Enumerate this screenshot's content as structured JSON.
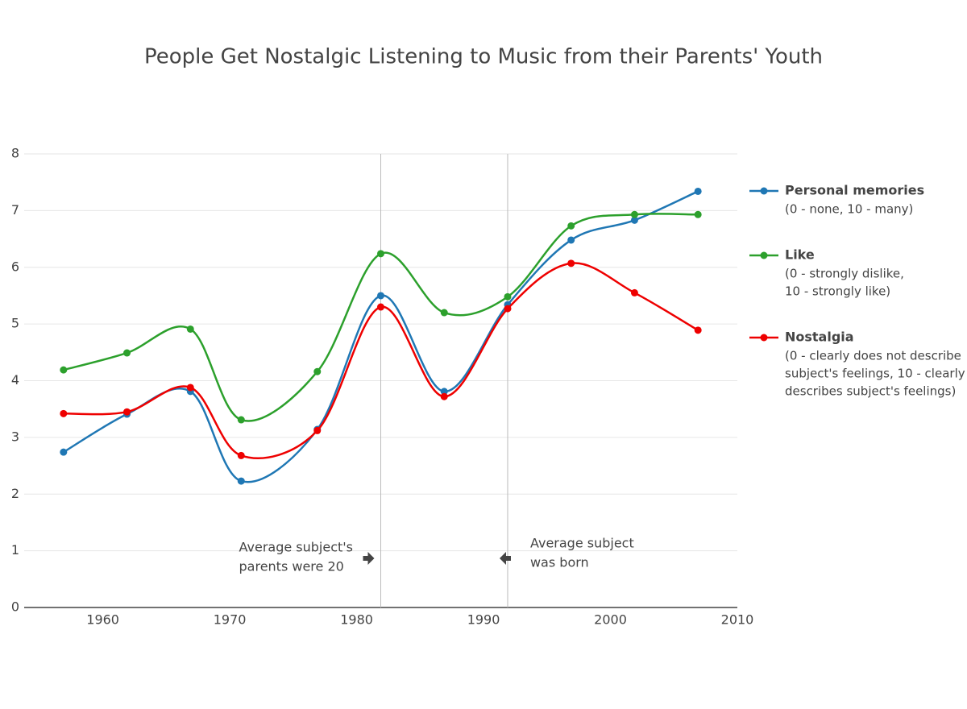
{
  "chart_data": {
    "type": "line",
    "title": "People Get Nostalgic Listening to Music from their Parents' Youth",
    "x": [
      1956.9,
      1961.9,
      1966.9,
      1970.9,
      1976.9,
      1981.9,
      1986.9,
      1991.9,
      1996.9,
      2001.9,
      2006.9
    ],
    "series": [
      {
        "name": "Personal memories",
        "note_lines": [
          "(0 - none, 10 - many)"
        ],
        "color": "#1f77b4",
        "values": [
          2.74,
          3.41,
          3.81,
          2.23,
          3.14,
          5.5,
          3.81,
          5.34,
          6.48,
          6.83,
          7.34
        ]
      },
      {
        "name": "Like",
        "note_lines": [
          "(0 - strongly dislike,",
          "10 - strongly like)"
        ],
        "color": "#2ca02c",
        "values": [
          4.19,
          4.49,
          4.91,
          3.31,
          4.16,
          6.24,
          5.2,
          5.48,
          6.73,
          6.93,
          6.93
        ]
      },
      {
        "name": "Nostalgia",
        "note_lines": [
          "(0 - clearly does not describe",
          "subject's feelings, 10 - clearly",
          "describes subject's feelings)"
        ],
        "color": "#ee0000",
        "values": [
          3.42,
          3.45,
          3.88,
          2.68,
          3.12,
          5.3,
          3.72,
          5.27,
          6.07,
          5.55,
          4.89
        ]
      }
    ],
    "xlim": [
      1953.8,
      2010
    ],
    "xticks": [
      1960,
      1970,
      1980,
      1990,
      2000,
      2010
    ],
    "ylim": [
      0,
      8
    ],
    "yticks": [
      0,
      1,
      2,
      3,
      4,
      5,
      6,
      7,
      8
    ],
    "grid": true,
    "legend": "right",
    "annotations": [
      {
        "x": 1981.9,
        "side": "left",
        "text_lines": [
          "Average subject's",
          "parents were 20"
        ]
      },
      {
        "x": 1991.9,
        "side": "right",
        "text_lines": [
          "Average subject",
          "was born"
        ]
      }
    ]
  }
}
